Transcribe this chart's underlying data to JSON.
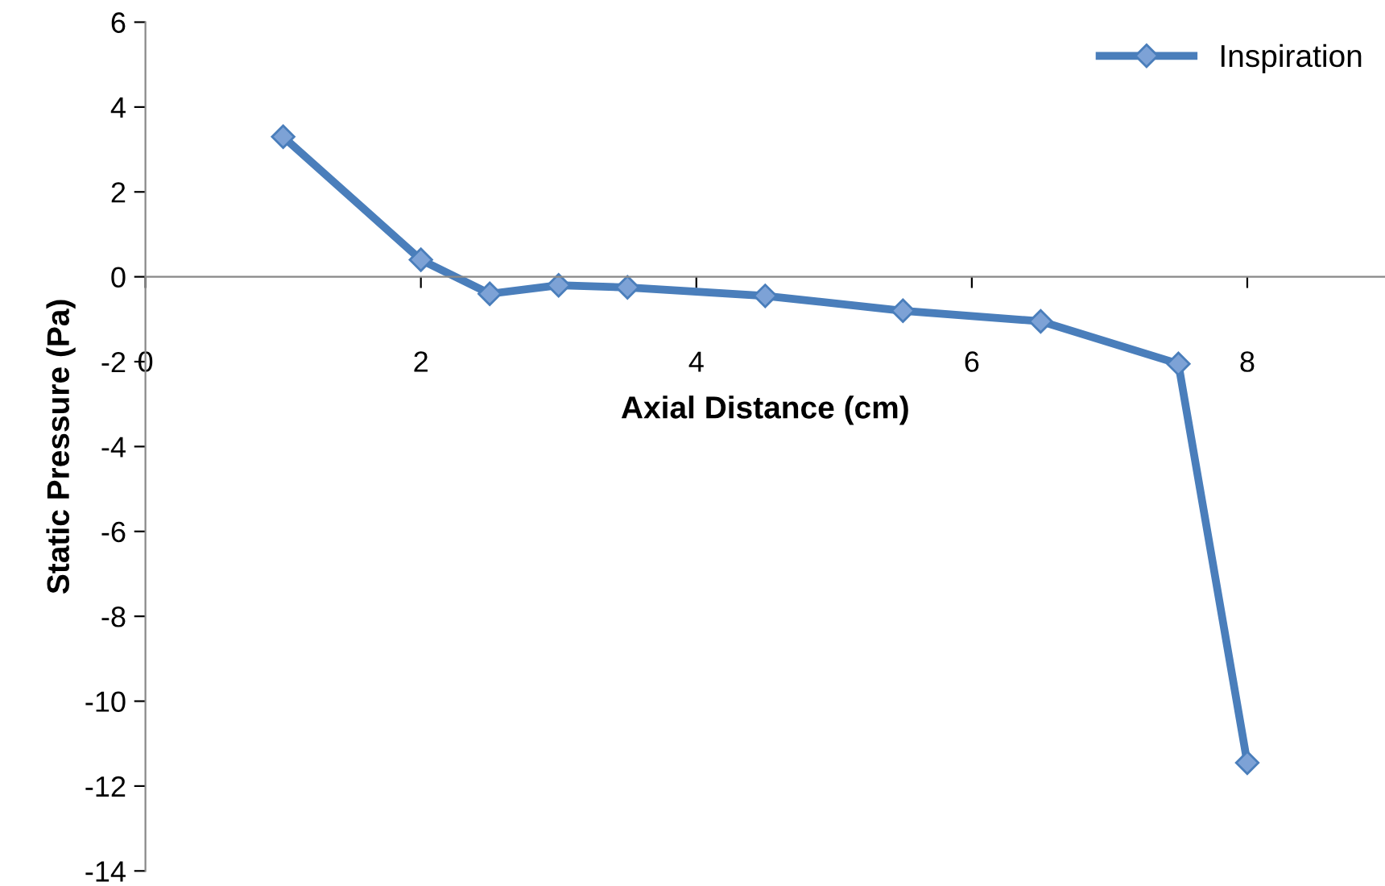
{
  "chart_data": {
    "type": "line",
    "xlabel": "Axial Distance (cm)",
    "ylabel": "Static Pressure (Pa)",
    "x": [
      1,
      2,
      2.5,
      3,
      3.5,
      4.5,
      5.5,
      6.5,
      7.5,
      8
    ],
    "series": [
      {
        "name": "Inspiration",
        "color": "#4a7ebb",
        "values": [
          3.3,
          0.4,
          -0.4,
          -0.2,
          -0.25,
          -0.45,
          -0.8,
          -1.05,
          -2.05,
          -11.45
        ]
      }
    ],
    "xlim": [
      0,
      9
    ],
    "xticks": [
      0,
      2,
      4,
      6,
      8
    ],
    "ylim": [
      -14,
      6
    ],
    "yticks": [
      -14,
      -12,
      -10,
      -8,
      -6,
      -4,
      -2,
      0,
      2,
      4,
      6
    ],
    "grid": false,
    "legend": "top right",
    "marker": "diamond",
    "line_style": "solid"
  }
}
